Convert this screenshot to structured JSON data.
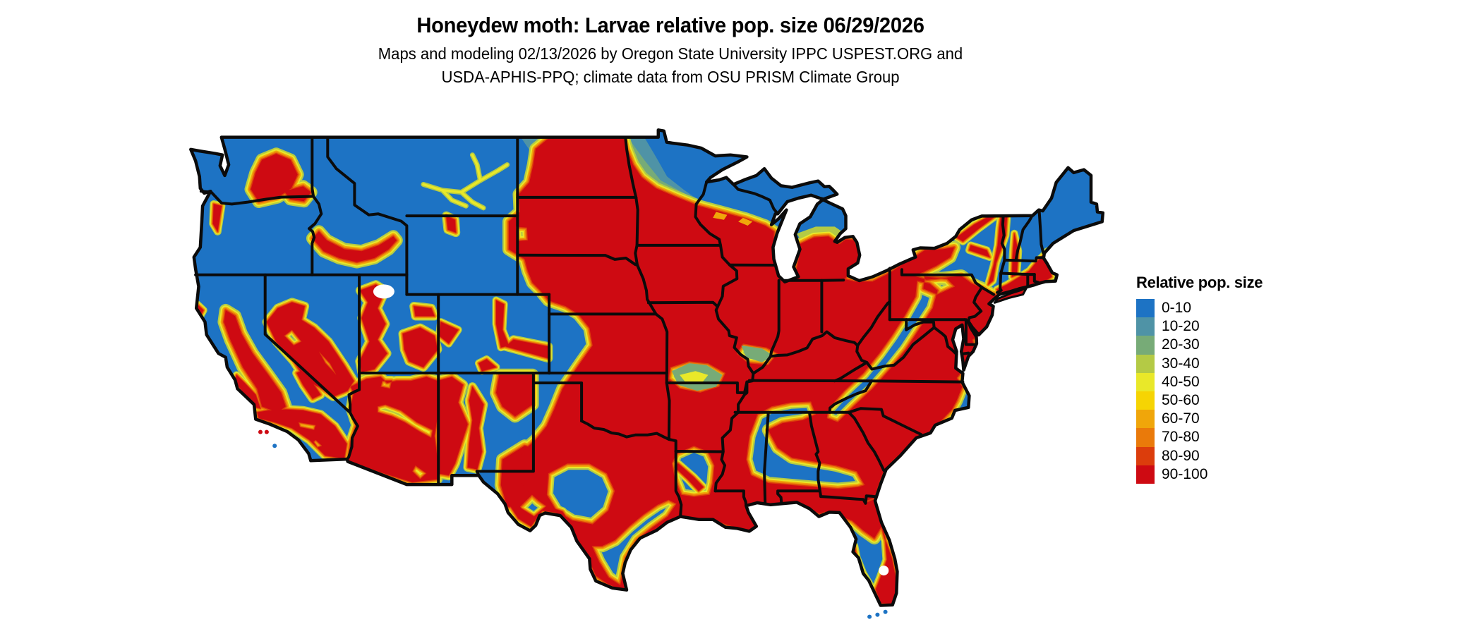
{
  "title": "Honeydew moth: Larvae relative pop. size 06/29/2026",
  "subtitle_line1": "Maps and modeling 02/13/2026 by Oregon State University IPPC USPEST.ORG and",
  "subtitle_line2": "USDA-APHIS-PPQ; climate data from OSU PRISM Climate Group",
  "legend": {
    "title": "Relative pop. size",
    "items": [
      {
        "label": "0-10",
        "color": "#1d73c4"
      },
      {
        "label": "10-20",
        "color": "#4f93a6"
      },
      {
        "label": "20-30",
        "color": "#77ab77"
      },
      {
        "label": "30-40",
        "color": "#b4ca45"
      },
      {
        "label": "40-50",
        "color": "#e9e829"
      },
      {
        "label": "50-60",
        "color": "#f6d403"
      },
      {
        "label": "60-70",
        "color": "#f0a60a"
      },
      {
        "label": "70-80",
        "color": "#ea7a0a"
      },
      {
        "label": "80-90",
        "color": "#dc3d0c"
      },
      {
        "label": "90-100",
        "color": "#ce0a12"
      }
    ]
  },
  "map": {
    "water_color": "#ffffff",
    "border_color": "#0b0b0b"
  }
}
